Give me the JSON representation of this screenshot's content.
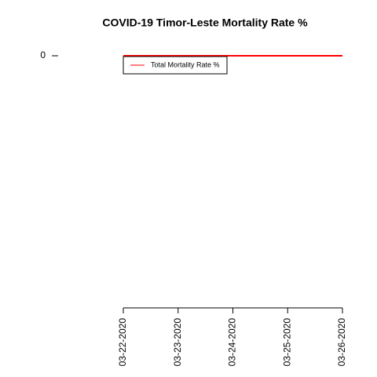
{
  "chart_data": {
    "type": "line",
    "title": "COVID-19 Timor-Leste Mortality Rate %",
    "categories": [
      "03-22-2020",
      "03-23-2020",
      "03-24-2020",
      "03-25-2020",
      "03-26-2020"
    ],
    "series": [
      {
        "name": "Total Mortality Rate %",
        "color": "#ff0000",
        "values": [
          0,
          0,
          0,
          0,
          0
        ]
      }
    ],
    "ylim": [
      -1,
      0
    ],
    "yticks": [
      0
    ],
    "legend": "top-left"
  }
}
